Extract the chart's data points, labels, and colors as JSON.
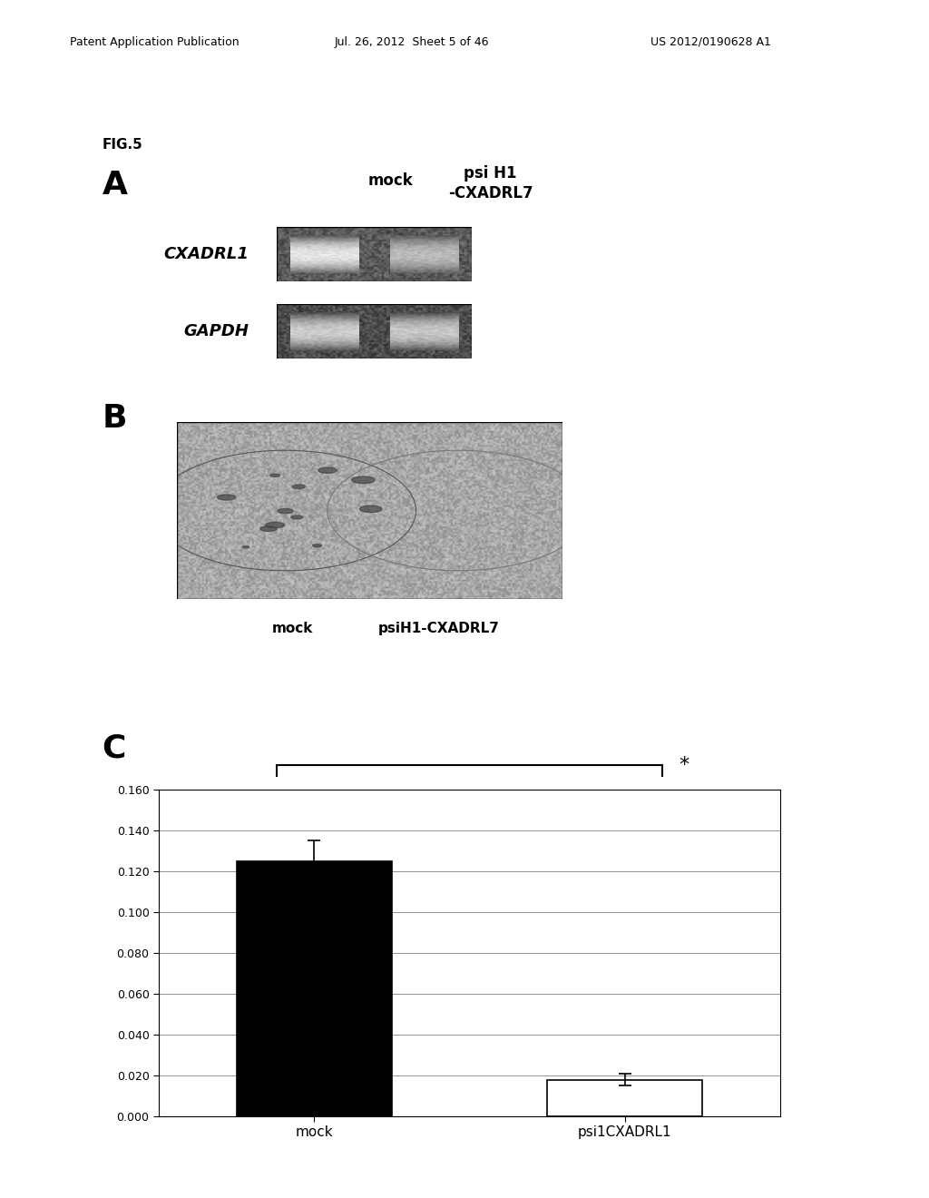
{
  "header_left": "Patent Application Publication",
  "header_mid": "Jul. 26, 2012  Sheet 5 of 46",
  "header_right": "US 2012/0190628 A1",
  "fig_label": "FIG.5",
  "panel_A_label": "A",
  "panel_B_label": "B",
  "panel_C_label": "C",
  "col_mock": "mock",
  "col_psi": "psi H1\n-CXADRL7",
  "row_CXADRL1": "CXADRL1",
  "row_GAPDH": "GAPDH",
  "B_mock_label": "mock",
  "B_psi_label": "psiH1-CXADRL7",
  "bar_categories": [
    "mock",
    "psi1CXADRL1"
  ],
  "bar_values": [
    0.125,
    0.018
  ],
  "bar_errors": [
    0.01,
    0.003
  ],
  "bar_colors": [
    "#000000",
    "#ffffff"
  ],
  "bar_edge_colors": [
    "#000000",
    "#000000"
  ],
  "ylim": [
    0.0,
    0.16
  ],
  "yticks": [
    0.0,
    0.02,
    0.04,
    0.06,
    0.08,
    0.1,
    0.12,
    0.14,
    0.16
  ],
  "significance_bracket": "*",
  "background_color": "#ffffff"
}
